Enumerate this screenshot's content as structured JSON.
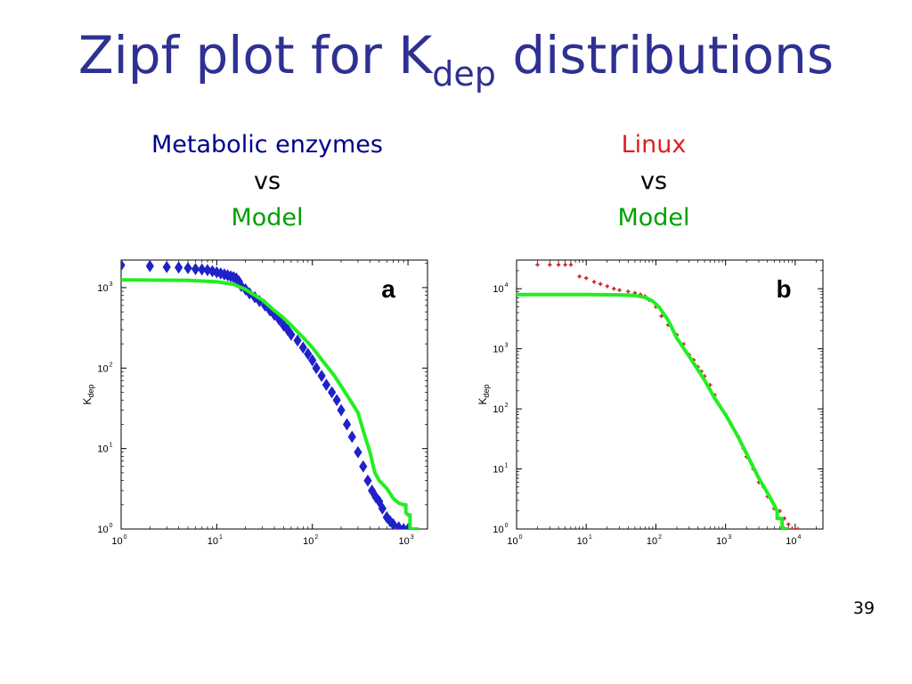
{
  "title": {
    "main": "Zipf plot for K",
    "sub": "dep",
    "tail": " distributions"
  },
  "subtitles": {
    "left": {
      "line1": "Metabolic enzymes",
      "line2": "vs",
      "line3": "Model"
    },
    "right": {
      "line1": "Linux",
      "line2": "vs",
      "line3": "Model"
    }
  },
  "colors": {
    "title": "#2e3192",
    "metabolic": "#1f22c8",
    "linux": "#cc2222",
    "model": "#22ee22",
    "label_blue": "#00008b",
    "label_red": "#e41e1e",
    "label_green": "#00a000"
  },
  "page_number": "39",
  "chart_data": [
    {
      "type": "scatter",
      "panel_label": "a",
      "xlabel": "",
      "ylabel": {
        "main": "K",
        "sub": "dep"
      },
      "xscale": "log",
      "yscale": "log",
      "xlim": [
        1,
        1600
      ],
      "ylim": [
        1,
        2200
      ],
      "xticks": [
        {
          "value": 1,
          "base": "10",
          "exp": "0"
        },
        {
          "value": 10,
          "base": "10",
          "exp": "1"
        },
        {
          "value": 100,
          "base": "10",
          "exp": "2"
        },
        {
          "value": 1000,
          "base": "10",
          "exp": "3"
        }
      ],
      "yticks": [
        {
          "value": 1,
          "base": "10",
          "exp": "0"
        },
        {
          "value": 10,
          "base": "10",
          "exp": "1"
        },
        {
          "value": 100,
          "base": "10",
          "exp": "2"
        },
        {
          "value": 1000,
          "base": "10",
          "exp": "3"
        }
      ],
      "series": [
        {
          "role": "data",
          "color": "#1f22c8",
          "marker": "diamond",
          "points": [
            [
              1,
              1900
            ],
            [
              2,
              1850
            ],
            [
              3,
              1800
            ],
            [
              4,
              1780
            ],
            [
              5,
              1750
            ],
            [
              6,
              1700
            ],
            [
              7,
              1680
            ],
            [
              8,
              1650
            ],
            [
              9,
              1600
            ],
            [
              10,
              1550
            ],
            [
              11,
              1500
            ],
            [
              12,
              1460
            ],
            [
              13,
              1420
            ],
            [
              14,
              1380
            ],
            [
              15,
              1350
            ],
            [
              16,
              1300
            ],
            [
              17,
              1200
            ],
            [
              18,
              1050
            ],
            [
              20,
              950
            ],
            [
              22,
              850
            ],
            [
              25,
              760
            ],
            [
              28,
              680
            ],
            [
              32,
              600
            ],
            [
              36,
              520
            ],
            [
              40,
              460
            ],
            [
              45,
              400
            ],
            [
              50,
              340
            ],
            [
              55,
              300
            ],
            [
              60,
              260
            ],
            [
              70,
              220
            ],
            [
              80,
              180
            ],
            [
              90,
              150
            ],
            [
              100,
              125
            ],
            [
              110,
              100
            ],
            [
              125,
              80
            ],
            [
              140,
              62
            ],
            [
              160,
              50
            ],
            [
              180,
              40
            ],
            [
              200,
              30
            ],
            [
              230,
              20
            ],
            [
              260,
              14
            ],
            [
              300,
              9
            ],
            [
              340,
              6
            ],
            [
              380,
              4
            ],
            [
              420,
              3
            ],
            [
              460,
              2.5
            ],
            [
              500,
              2.2
            ],
            [
              540,
              1.8
            ],
            [
              600,
              1.4
            ],
            [
              650,
              1.25
            ],
            [
              700,
              1.15
            ],
            [
              800,
              1.05
            ],
            [
              900,
              1.0
            ],
            [
              1000,
              1.0
            ]
          ]
        },
        {
          "role": "model",
          "color": "#22ee22",
          "marker": "line",
          "points": [
            [
              1,
              1250
            ],
            [
              5,
              1230
            ],
            [
              10,
              1180
            ],
            [
              15,
              1100
            ],
            [
              20,
              950
            ],
            [
              30,
              700
            ],
            [
              40,
              520
            ],
            [
              50,
              420
            ],
            [
              60,
              340
            ],
            [
              80,
              240
            ],
            [
              100,
              180
            ],
            [
              130,
              120
            ],
            [
              170,
              80
            ],
            [
              220,
              50
            ],
            [
              300,
              28
            ],
            [
              350,
              15
            ],
            [
              400,
              9
            ],
            [
              450,
              5
            ],
            [
              500,
              4
            ],
            [
              600,
              3.2
            ],
            [
              700,
              2.4
            ],
            [
              800,
              2.1
            ],
            [
              900,
              2.0
            ],
            [
              950,
              2.0
            ],
            [
              950,
              1.6
            ],
            [
              1000,
              1.5
            ],
            [
              1050,
              1.5
            ],
            [
              1050,
              1.0
            ],
            [
              1300,
              1.0
            ]
          ]
        }
      ]
    },
    {
      "type": "scatter",
      "panel_label": "b",
      "xlabel": "",
      "ylabel": {
        "main": "K",
        "sub": "dep"
      },
      "xscale": "log",
      "yscale": "log",
      "xlim": [
        1,
        25000
      ],
      "ylim": [
        1,
        30000
      ],
      "xticks": [
        {
          "value": 1,
          "base": "10",
          "exp": "0"
        },
        {
          "value": 10,
          "base": "10",
          "exp": "1"
        },
        {
          "value": 100,
          "base": "10",
          "exp": "2"
        },
        {
          "value": 1000,
          "base": "10",
          "exp": "3"
        },
        {
          "value": 10000,
          "base": "10",
          "exp": "4"
        }
      ],
      "yticks": [
        {
          "value": 1,
          "base": "10",
          "exp": "0"
        },
        {
          "value": 10,
          "base": "10",
          "exp": "1"
        },
        {
          "value": 100,
          "base": "10",
          "exp": "2"
        },
        {
          "value": 1000,
          "base": "10",
          "exp": "3"
        },
        {
          "value": 10000,
          "base": "10",
          "exp": "4"
        }
      ],
      "series": [
        {
          "role": "data",
          "color": "#cc2222",
          "marker": "cross",
          "points": [
            [
              2,
              25000
            ],
            [
              3,
              25000
            ],
            [
              4,
              25000
            ],
            [
              5,
              25000
            ],
            [
              6,
              25000
            ],
            [
              8,
              16000
            ],
            [
              10,
              15000
            ],
            [
              13,
              13000
            ],
            [
              16,
              12000
            ],
            [
              20,
              11000
            ],
            [
              25,
              10000
            ],
            [
              30,
              9500
            ],
            [
              40,
              9000
            ],
            [
              50,
              8500
            ],
            [
              60,
              8000
            ],
            [
              70,
              7500
            ],
            [
              80,
              6500
            ],
            [
              100,
              5000
            ],
            [
              120,
              3500
            ],
            [
              150,
              2500
            ],
            [
              200,
              1700
            ],
            [
              250,
              1200
            ],
            [
              300,
              800
            ],
            [
              350,
              650
            ],
            [
              400,
              500
            ],
            [
              450,
              420
            ],
            [
              500,
              350
            ],
            [
              600,
              250
            ],
            [
              700,
              170
            ],
            [
              800,
              120
            ],
            [
              1000,
              80
            ],
            [
              1200,
              55
            ],
            [
              1500,
              35
            ],
            [
              1800,
              22
            ],
            [
              2000,
              16
            ],
            [
              2500,
              10
            ],
            [
              3000,
              6
            ],
            [
              3500,
              5
            ],
            [
              4000,
              3.5
            ],
            [
              5000,
              2.2
            ],
            [
              6000,
              2.0
            ],
            [
              7000,
              1.5
            ],
            [
              8000,
              1.2
            ],
            [
              9000,
              1.0
            ],
            [
              11000,
              1.0
            ]
          ]
        },
        {
          "role": "model",
          "color": "#22ee22",
          "marker": "line",
          "points": [
            [
              1,
              8000
            ],
            [
              10,
              8000
            ],
            [
              30,
              7900
            ],
            [
              50,
              7700
            ],
            [
              70,
              7200
            ],
            [
              90,
              6200
            ],
            [
              110,
              5000
            ],
            [
              150,
              3000
            ],
            [
              200,
              1500
            ],
            [
              300,
              750
            ],
            [
              400,
              450
            ],
            [
              500,
              300
            ],
            [
              700,
              150
            ],
            [
              1000,
              80
            ],
            [
              1500,
              35
            ],
            [
              2000,
              18
            ],
            [
              3000,
              7
            ],
            [
              4000,
              4
            ],
            [
              5000,
              2.5
            ],
            [
              5500,
              2.0
            ],
            [
              5500,
              1.5
            ],
            [
              6500,
              1.5
            ],
            [
              6500,
              1.0
            ],
            [
              8000,
              1.0
            ]
          ]
        }
      ]
    }
  ]
}
